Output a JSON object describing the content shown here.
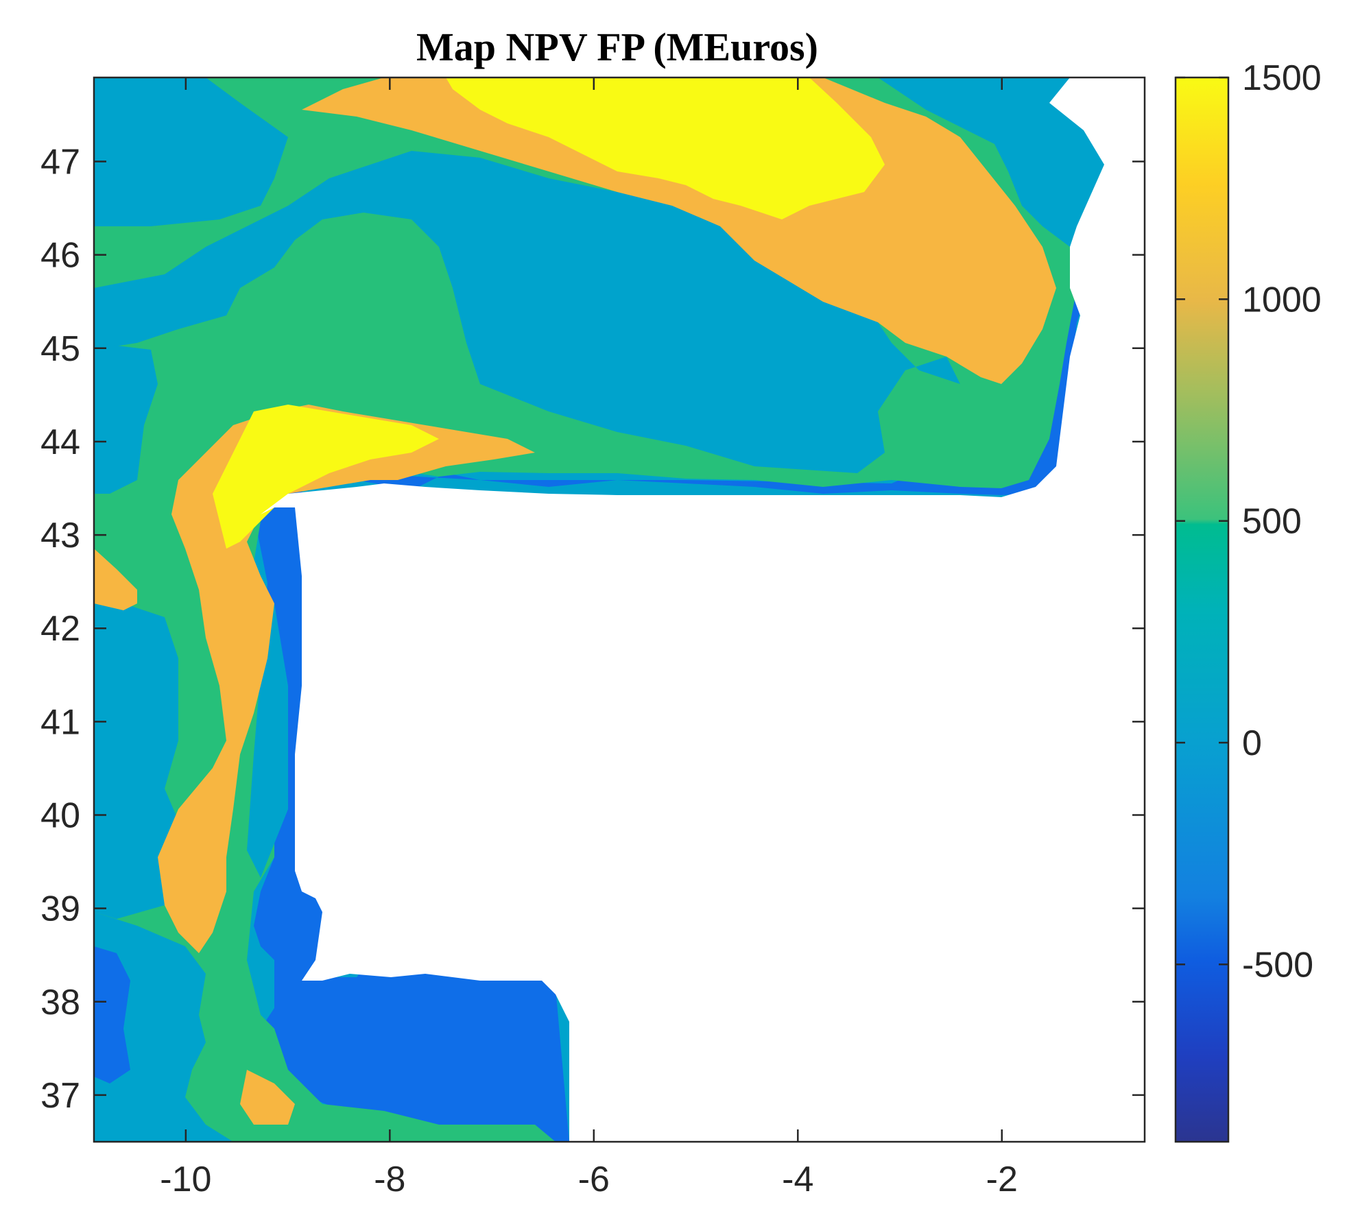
{
  "chart_data": {
    "type": "heatmap",
    "title": "Map NPV FP (MEuros)",
    "xlabel": "",
    "ylabel": "",
    "xlim": [
      -10.9,
      -0.6
    ],
    "ylim": [
      36.5,
      47.9
    ],
    "xticks": [
      "-10",
      "-8",
      "-6",
      "-4",
      "-2"
    ],
    "yticks": [
      "37",
      "38",
      "39",
      "40",
      "41",
      "42",
      "43",
      "44",
      "45",
      "46",
      "47"
    ],
    "colorbar": {
      "range": [
        -900,
        1500
      ],
      "ticks": [
        "-500",
        "0",
        "500",
        "1000",
        "1500"
      ],
      "colormap": "parula"
    },
    "grid": false,
    "levels": [
      {
        "range": [
          -900,
          -600
        ],
        "color": "#2b3590"
      },
      {
        "range": [
          -600,
          -200
        ],
        "color": "#0f6ee8"
      },
      {
        "range": [
          -200,
          300
        ],
        "color": "#00a3cc"
      },
      {
        "range": [
          300,
          800
        ],
        "color": "#26c07a"
      },
      {
        "range": [
          800,
          1300
        ],
        "color": "#f7b641"
      },
      {
        "range": [
          1300,
          1500
        ],
        "color": "#f9fa14"
      }
    ],
    "land_color": "#ffffff"
  }
}
